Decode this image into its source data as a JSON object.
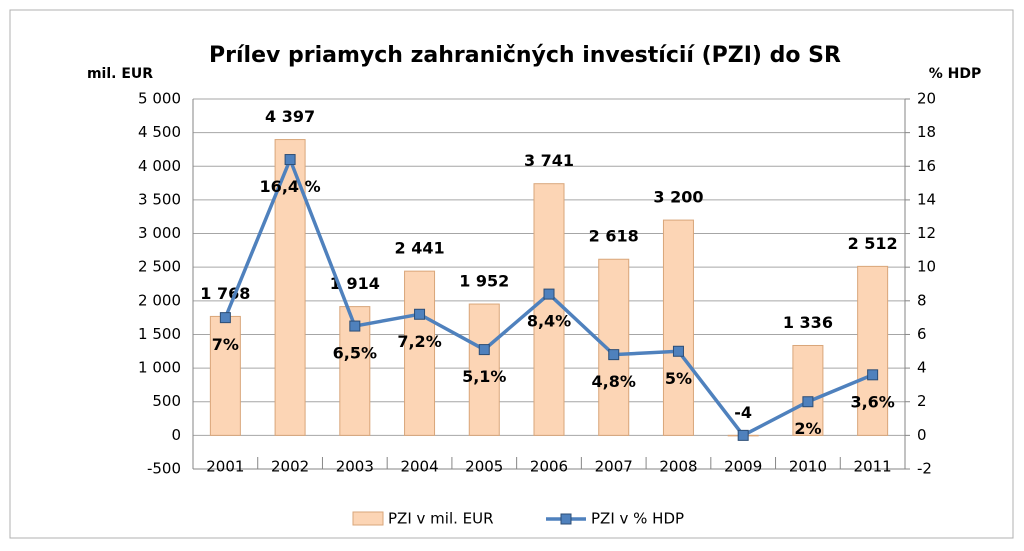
{
  "chart_data": {
    "type": "bar-line",
    "title": "Prílev priamych zahraničných investícií (PZI) do SR",
    "y_label": "mil. EUR",
    "y2_label": "% HDP",
    "categories": [
      "2001",
      "2002",
      "2003",
      "2004",
      "2005",
      "2006",
      "2007",
      "2008",
      "2009",
      "2010",
      "2011"
    ],
    "series": [
      {
        "name": "PZI v mil. EUR",
        "type": "bar",
        "color": "#fcd5b5",
        "axis": "y",
        "values": [
          1768,
          4397,
          1914,
          2441,
          1952,
          3741,
          2618,
          3200,
          -4,
          1336,
          2512
        ],
        "value_labels": [
          "1 768",
          "4 397",
          "1 914",
          "2 441",
          "1 952",
          "3 741",
          "2 618",
          "3 200",
          "-4",
          "1 336",
          "2 512"
        ]
      },
      {
        "name": "PZI v % HDP",
        "type": "line",
        "color": "#4f81bd",
        "axis": "y2",
        "values": [
          7,
          16.4,
          6.5,
          7.2,
          5.1,
          8.4,
          4.8,
          5,
          0,
          2,
          3.6
        ],
        "value_labels": [
          "7%",
          "16,4 %",
          "6,5%",
          "7,2%",
          "5,1%",
          "8,4%",
          "4,8%",
          "5%",
          null,
          "2%",
          "3,6%"
        ]
      }
    ],
    "ylim": [
      -500,
      5000
    ],
    "yticks": [
      -500,
      0,
      500,
      {
        "value": 1000,
        "label": "1 000"
      },
      {
        "value": 1500,
        "label": "1 500"
      },
      {
        "value": 2000,
        "label": "2 000"
      },
      {
        "value": 2500,
        "label": "2 500"
      },
      {
        "value": 3000,
        "label": "3 000"
      },
      {
        "value": 3500,
        "label": "3 500"
      },
      {
        "value": 4000,
        "label": "4 000"
      },
      {
        "value": 4500,
        "label": "4 500"
      },
      {
        "value": 5000,
        "label": "5 000"
      }
    ],
    "y2lim": [
      -2,
      20
    ],
    "y2ticks": [
      -2,
      0,
      2,
      4,
      6,
      8,
      10,
      12,
      14,
      16,
      18,
      20
    ],
    "grid": true,
    "legend": "bottom"
  }
}
